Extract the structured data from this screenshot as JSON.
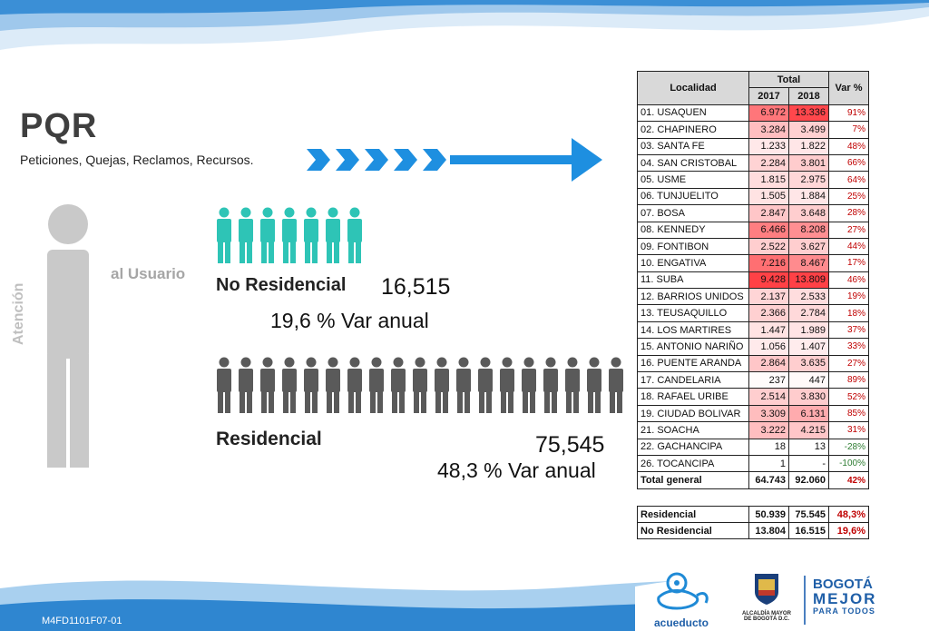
{
  "title": "PQR",
  "subtitle": "Peticiones, Quejas, Reclamos, Recursos.",
  "side_label_1": "Atención",
  "side_label_2": "al Usuario",
  "no_residencial": {
    "label": "No Residencial",
    "value": "16,515",
    "var_num": "19,6",
    "var_text": "% Var  anual"
  },
  "residencial": {
    "label": "Residencial",
    "value": "75,545",
    "var_num": "48,3",
    "var_text": "% Var  anual"
  },
  "colors": {
    "teal": "#2ec4b6",
    "grey": "#5a5a5a",
    "accent_blue": "#1e8fe0",
    "red_var": "#c00000"
  },
  "table": {
    "headers": {
      "localidad": "Localidad",
      "total": "Total",
      "y2017": "2017",
      "y2018": "2018",
      "var": "Var %"
    },
    "rows": [
      {
        "loc": "01. USAQUEN",
        "v2017": "6.972",
        "v2018": "13.336",
        "var": "91%",
        "heat": [
          0.72,
          0.97
        ]
      },
      {
        "loc": "02. CHAPINERO",
        "v2017": "3.284",
        "v2018": "3.499",
        "var": "7%",
        "heat": [
          0.34,
          0.25
        ]
      },
      {
        "loc": "03. SANTA FE",
        "v2017": "1.233",
        "v2018": "1.822",
        "var": "48%",
        "heat": [
          0.12,
          0.13
        ]
      },
      {
        "loc": "04. SAN CRISTOBAL",
        "v2017": "2.284",
        "v2018": "3.801",
        "var": "66%",
        "heat": [
          0.23,
          0.27
        ]
      },
      {
        "loc": "05. USME",
        "v2017": "1.815",
        "v2018": "2.975",
        "var": "64%",
        "heat": [
          0.18,
          0.21
        ]
      },
      {
        "loc": "06. TUNJUELITO",
        "v2017": "1.505",
        "v2018": "1.884",
        "var": "25%",
        "heat": [
          0.15,
          0.13
        ]
      },
      {
        "loc": "07. BOSA",
        "v2017": "2.847",
        "v2018": "3.648",
        "var": "28%",
        "heat": [
          0.3,
          0.26
        ]
      },
      {
        "loc": "08. KENNEDY",
        "v2017": "6.466",
        "v2018": "8.208",
        "var": "27%",
        "heat": [
          0.68,
          0.59
        ]
      },
      {
        "loc": "09. FONTIBON",
        "v2017": "2.522",
        "v2018": "3.627",
        "var": "44%",
        "heat": [
          0.26,
          0.26
        ]
      },
      {
        "loc": "10. ENGATIVA",
        "v2017": "7.216",
        "v2018": "8.467",
        "var": "17%",
        "heat": [
          0.76,
          0.61
        ]
      },
      {
        "loc": "11. SUBA",
        "v2017": "9.428",
        "v2018": "13.809",
        "var": "46%",
        "heat": [
          1.0,
          1.0
        ]
      },
      {
        "loc": "12. BARRIOS UNIDOS",
        "v2017": "2.137",
        "v2018": "2.533",
        "var": "19%",
        "heat": [
          0.22,
          0.18
        ]
      },
      {
        "loc": "13. TEUSAQUILLO",
        "v2017": "2.366",
        "v2018": "2.784",
        "var": "18%",
        "heat": [
          0.25,
          0.2
        ]
      },
      {
        "loc": "14. LOS MARTIRES",
        "v2017": "1.447",
        "v2018": "1.989",
        "var": "37%",
        "heat": [
          0.15,
          0.14
        ]
      },
      {
        "loc": "15. ANTONIO NARIÑO",
        "v2017": "1.056",
        "v2018": "1.407",
        "var": "33%",
        "heat": [
          0.11,
          0.1
        ]
      },
      {
        "loc": "16. PUENTE ARANDA",
        "v2017": "2.864",
        "v2018": "3.635",
        "var": "27%",
        "heat": [
          0.3,
          0.26
        ]
      },
      {
        "loc": "17. CANDELARIA",
        "v2017": "237",
        "v2018": "447",
        "var": "89%",
        "heat": [
          0.02,
          0.03
        ]
      },
      {
        "loc": "18. RAFAEL URIBE",
        "v2017": "2.514",
        "v2018": "3.830",
        "var": "52%",
        "heat": [
          0.26,
          0.27
        ]
      },
      {
        "loc": "19. CIUDAD BOLIVAR",
        "v2017": "3.309",
        "v2018": "6.131",
        "var": "85%",
        "heat": [
          0.35,
          0.44
        ]
      },
      {
        "loc": "21. SOACHA",
        "v2017": "3.222",
        "v2018": "4.215",
        "var": "31%",
        "heat": [
          0.34,
          0.3
        ]
      },
      {
        "loc": "22. GACHANCIPA",
        "v2017": "18",
        "v2018": "13",
        "var": "-28%",
        "heat": [
          0,
          0
        ]
      },
      {
        "loc": "26. TOCANCIPA",
        "v2017": "1",
        "v2018": "-",
        "var": "-100%",
        "heat": [
          0,
          0
        ]
      }
    ],
    "total": {
      "loc": "Total general",
      "v2017": "64.743",
      "v2018": "92.060",
      "var": "42%"
    }
  },
  "summary": [
    {
      "loc": "Residencial",
      "v2017": "50.939",
      "v2018": "75.545",
      "var": "48,3%"
    },
    {
      "loc": "No Residencial",
      "v2017": "13.804",
      "v2018": "16.515",
      "var": "19,6%"
    }
  ],
  "footer_code": "M4FD1101F07-01",
  "logos": {
    "acueducto": "acueducto",
    "alcaldia_line1": "ALCALDÍA MAYOR",
    "alcaldia_line2": "DE BOGOTÁ D.C.",
    "bogota_line1": "BOGOTÁ",
    "bogota_line2": "MEJOR",
    "bogota_line3": "PARA TODOS"
  },
  "people": {
    "teal_count": 7,
    "grey_count": 19
  }
}
